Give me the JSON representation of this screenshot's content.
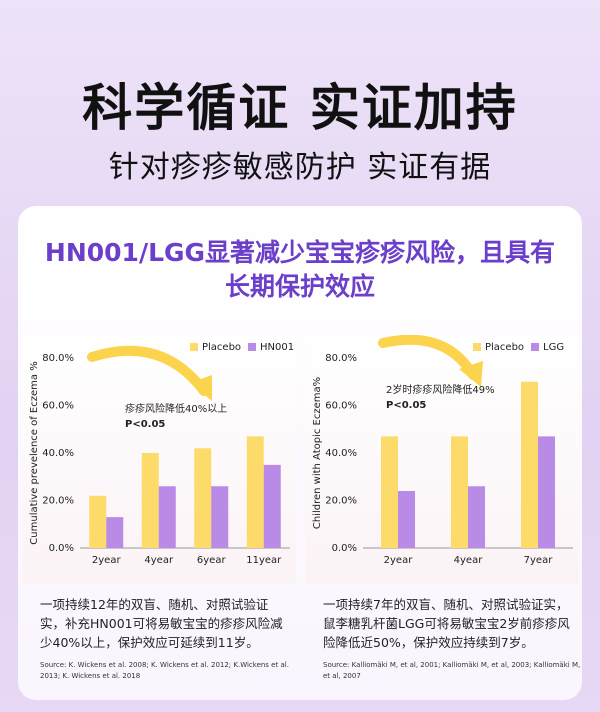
{
  "header": {
    "title": "科学循证 实证加持",
    "subtitle": "针对疹疹敏感防护 实证有据"
  },
  "card": {
    "title": "HN001/LGG显著减少宝宝疹疹风险，且具有长期保护效应"
  },
  "chart_data": [
    {
      "type": "bar",
      "ylabel": "Cumulative prevelence of Eczema %",
      "annotation": "疹疹风险降低40%以上",
      "annotation_note": "P<0.05",
      "categories": [
        "2year",
        "4year",
        "6year",
        "11year"
      ],
      "series": [
        {
          "name": "Placebo",
          "color": "#fcdb6b",
          "values": [
            22,
            40,
            42,
            47
          ]
        },
        {
          "name": "HN001",
          "color": "#b98ae6",
          "values": [
            13,
            26,
            26,
            35
          ]
        }
      ],
      "ylim": [
        0,
        80
      ],
      "yticks": [
        {
          "value": 0,
          "label": "0.0%"
        },
        {
          "value": 20,
          "label": "20.0%"
        },
        {
          "value": 40,
          "label": "40.0%"
        },
        {
          "value": 60,
          "label": "60.0%"
        },
        {
          "value": 80,
          "label": "80.0%"
        }
      ],
      "grid": false,
      "legend": "top-right",
      "description": "一项持续12年的双盲、随机、对照试验证实，补充HN001可将易敏宝宝的疹疹风险减少40%以上，保护效应可延续到11岁。",
      "source": "Source: K. Wickens et al. 2008; K. Wickens et al. 2012; K.Wickens et al. 2013; K. Wickens et al. 2018"
    },
    {
      "type": "bar",
      "ylabel": "Children with Atopic Eczema%",
      "annotation": "2岁时疹疹风险降低49%",
      "annotation_note": "P<0.05",
      "categories": [
        "2year",
        "4year",
        "7year"
      ],
      "series": [
        {
          "name": "Placebo",
          "color": "#fcdb6b",
          "values": [
            47,
            47,
            70
          ]
        },
        {
          "name": "LGG",
          "color": "#b98ae6",
          "values": [
            24,
            26,
            47
          ]
        }
      ],
      "ylim": [
        0,
        80
      ],
      "yticks": [
        {
          "value": 0,
          "label": "0.0%"
        },
        {
          "value": 20,
          "label": "20.0%"
        },
        {
          "value": 40,
          "label": "40.0%"
        },
        {
          "value": 60,
          "label": "60.0%"
        },
        {
          "value": 80,
          "label": "80.0%"
        }
      ],
      "grid": false,
      "legend": "top-right",
      "description": "一项持续7年的双盲、随机、对照试验证实，鼠李糖乳杆菌LGG可将易敏宝宝2岁前疹疹风险降低近50%，保护效应持续到7岁。",
      "source": "Source: Kalliomäki M, et al, 2001; Kalliomäki M, et al, 2003; Kalliomäki M, et al, 2007"
    }
  ]
}
